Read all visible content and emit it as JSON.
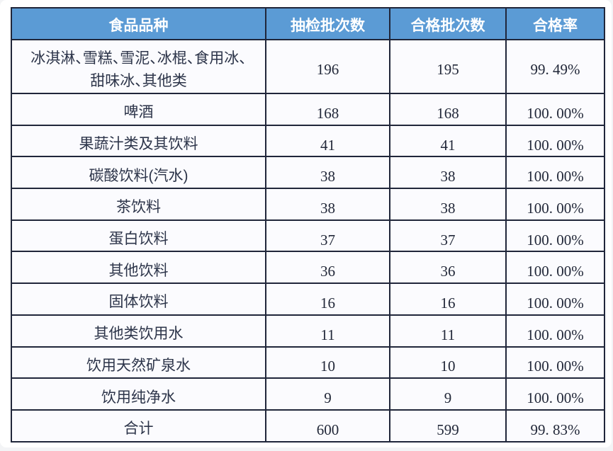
{
  "accent_colors": {
    "header_background": "#5b9bd5",
    "header_text": "#ffffff",
    "table_border": "#20263a",
    "body_text": "#2c3449"
  },
  "table": {
    "columns": [
      "食品品种",
      "抽检批次数",
      "合格批次数",
      "合格率"
    ],
    "rows": [
      {
        "food": [
          "冰淇淋、雪糕、雪泥、冰棍、食用冰、",
          "甜味冰、其他类"
        ],
        "sampled": "196",
        "qualified": "195",
        "rate": "99. 49%"
      },
      {
        "food": "啤酒",
        "sampled": "168",
        "qualified": "168",
        "rate": "100. 00%"
      },
      {
        "food": "果蔬汁类及其饮料",
        "sampled": "41",
        "qualified": "41",
        "rate": "100. 00%"
      },
      {
        "food": "碳酸饮料(汽水)",
        "sampled": "38",
        "qualified": "38",
        "rate": "100. 00%"
      },
      {
        "food": "茶饮料",
        "sampled": "38",
        "qualified": "38",
        "rate": "100. 00%"
      },
      {
        "food": "蛋白饮料",
        "sampled": "37",
        "qualified": "37",
        "rate": "100. 00%"
      },
      {
        "food": "其他饮料",
        "sampled": "36",
        "qualified": "36",
        "rate": "100. 00%"
      },
      {
        "food": "固体饮料",
        "sampled": "16",
        "qualified": "16",
        "rate": "100. 00%"
      },
      {
        "food": "其他类饮用水",
        "sampled": "11",
        "qualified": "11",
        "rate": "100. 00%"
      },
      {
        "food": "饮用天然矿泉水",
        "sampled": "10",
        "qualified": "10",
        "rate": "100. 00%"
      },
      {
        "food": "饮用纯净水",
        "sampled": "9",
        "qualified": "9",
        "rate": "100. 00%"
      },
      {
        "food": "合计",
        "sampled": "600",
        "qualified": "599",
        "rate": "99. 83%"
      }
    ]
  },
  "chart_data": {
    "type": "table",
    "title": "",
    "columns": [
      "食品品种",
      "抽检批次数",
      "合格批次数",
      "合格率"
    ],
    "rows": [
      [
        "冰淇淋、雪糕、雪泥、冰棍、食用冰、甜味冰、其他类",
        196,
        195,
        "99.49%"
      ],
      [
        "啤酒",
        168,
        168,
        "100.00%"
      ],
      [
        "果蔬汁类及其饮料",
        41,
        41,
        "100.00%"
      ],
      [
        "碳酸饮料(汽水)",
        38,
        38,
        "100.00%"
      ],
      [
        "茶饮料",
        38,
        38,
        "100.00%"
      ],
      [
        "蛋白饮料",
        37,
        37,
        "100.00%"
      ],
      [
        "其他饮料",
        36,
        36,
        "100.00%"
      ],
      [
        "固体饮料",
        16,
        16,
        "100.00%"
      ],
      [
        "其他类饮用水",
        11,
        11,
        "100.00%"
      ],
      [
        "饮用天然矿泉水",
        10,
        10,
        "100.00%"
      ],
      [
        "饮用纯净水",
        9,
        9,
        "100.00%"
      ],
      [
        "合计",
        600,
        599,
        "99.83%"
      ]
    ]
  }
}
